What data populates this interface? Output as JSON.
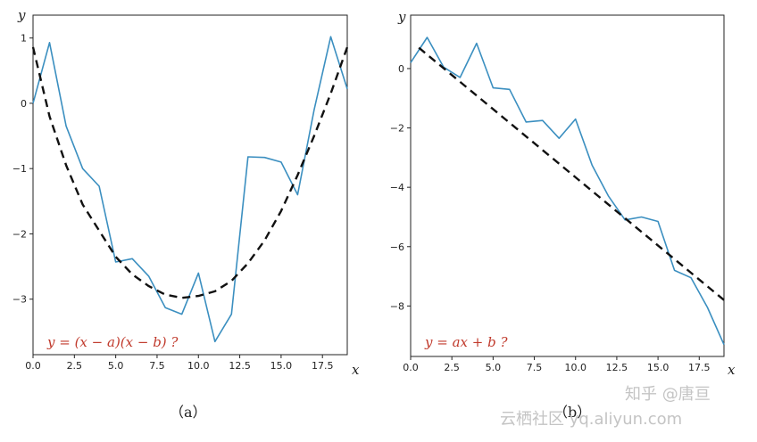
{
  "captions": [
    "（a）",
    "（b）"
  ],
  "watermark": {
    "line1": "知乎 @唐亘",
    "line2": "云栖社区 yq.aliyun.com"
  },
  "colors": {
    "data_line": "#3b8fc0",
    "fit_line": "#111111",
    "annotation": "#c0392b"
  },
  "chart_data": [
    {
      "type": "line",
      "xlabel": "x",
      "ylabel": "y",
      "annotation": "y = (x − a)(x − b) ?",
      "xlim": [
        0,
        19
      ],
      "ylim": [
        -3.85,
        1.35
      ],
      "xticks": [
        0,
        2.5,
        5,
        7.5,
        10,
        12.5,
        15,
        17.5
      ],
      "xtick_labels": [
        "0.0",
        "2.5",
        "5.0",
        "7.5",
        "10.0",
        "12.5",
        "15.0",
        "17.5"
      ],
      "yticks": [
        1,
        0,
        -1,
        -2,
        -3
      ],
      "ytick_labels": [
        "1",
        "0",
        "−1",
        "−2",
        "−3"
      ],
      "series": [
        {
          "style": "solid",
          "x": [
            0,
            1,
            2,
            3,
            4,
            5,
            6,
            7,
            8,
            9,
            10,
            11,
            12,
            13,
            14,
            15,
            16,
            17,
            18,
            19
          ],
          "y": [
            0.0,
            0.93,
            -0.35,
            -1.0,
            -1.27,
            -2.43,
            -2.38,
            -2.65,
            -3.13,
            -3.23,
            -2.6,
            -3.65,
            -3.23,
            -0.82,
            -0.83,
            -0.9,
            -1.4,
            -0.1,
            1.02,
            0.22
          ]
        },
        {
          "style": "dashed",
          "x": [
            0,
            1,
            2,
            3,
            4,
            5,
            6,
            7,
            8,
            9,
            10,
            11,
            12,
            13,
            14,
            15,
            16,
            17,
            18,
            19
          ],
          "y": [
            0.86,
            -0.2,
            -0.95,
            -1.55,
            -1.95,
            -2.35,
            -2.62,
            -2.8,
            -2.93,
            -2.98,
            -2.95,
            -2.88,
            -2.72,
            -2.45,
            -2.1,
            -1.65,
            -1.1,
            -0.5,
            0.15,
            0.86
          ]
        }
      ]
    },
    {
      "type": "line",
      "xlabel": "x",
      "ylabel": "y",
      "annotation": "y = ax + b ?",
      "xlim": [
        0,
        19
      ],
      "ylim": [
        -9.7,
        1.8
      ],
      "xticks": [
        0,
        2.5,
        5,
        7.5,
        10,
        12.5,
        15,
        17.5
      ],
      "xtick_labels": [
        "0.0",
        "2.5",
        "5.0",
        "7.5",
        "10.0",
        "12.5",
        "15.0",
        "17.5"
      ],
      "yticks": [
        0,
        -2,
        -4,
        -6,
        -8
      ],
      "ytick_labels": [
        "0",
        "−2",
        "−4",
        "−6",
        "−8"
      ],
      "series": [
        {
          "style": "solid",
          "x": [
            0,
            1,
            2,
            3,
            4,
            5,
            6,
            7,
            8,
            9,
            10,
            11,
            12,
            13,
            14,
            15,
            16,
            17,
            18,
            19
          ],
          "y": [
            0.2,
            1.05,
            0.05,
            -0.3,
            0.85,
            -0.65,
            -0.7,
            -1.8,
            -1.75,
            -2.35,
            -1.7,
            -3.25,
            -4.3,
            -5.1,
            -5.0,
            -5.15,
            -6.8,
            -7.05,
            -8.05,
            -9.3
          ]
        },
        {
          "style": "dashed",
          "x": [
            0.5,
            19
          ],
          "y": [
            0.7,
            -7.8
          ]
        }
      ]
    }
  ]
}
